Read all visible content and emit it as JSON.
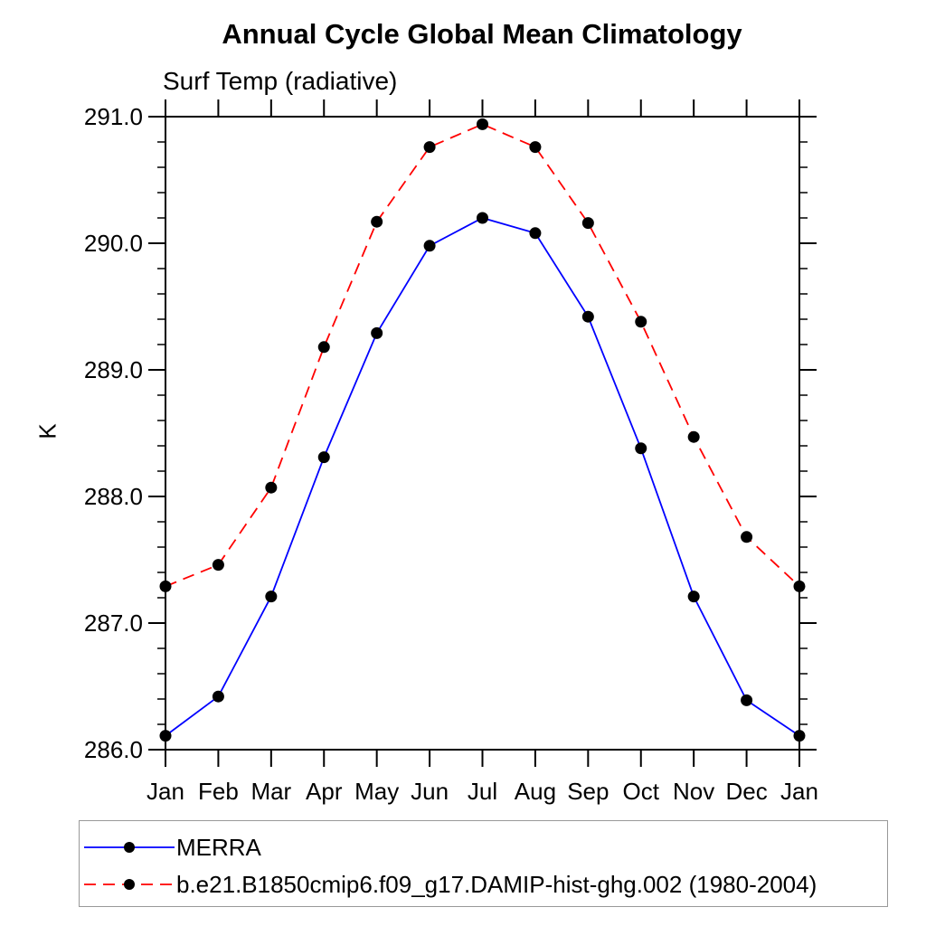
{
  "title": "Annual Cycle Global Mean Climatology",
  "subtitle": "Surf Temp (radiative)",
  "ylabel": "K",
  "colors": {
    "merra_line": "#0000ff",
    "model_line": "#ff0000",
    "marker": "#000000",
    "axis": "#000000",
    "legend_border": "#999999"
  },
  "legend": {
    "items": [
      {
        "label": "MERRA",
        "color": "#0000ff",
        "style": "solid"
      },
      {
        "label": "b.e21.B1850cmip6.f09_g17.DAMIP-hist-ghg.002 (1980-2004)",
        "color": "#ff0000",
        "style": "dashed"
      }
    ]
  },
  "chart_data": {
    "type": "line",
    "title": "Annual Cycle Global Mean Climatology",
    "subtitle": "Surf Temp (radiative)",
    "xlabel": "",
    "ylabel": "K",
    "categories": [
      "Jan",
      "Feb",
      "Mar",
      "Apr",
      "May",
      "Jun",
      "Jul",
      "Aug",
      "Sep",
      "Oct",
      "Nov",
      "Dec",
      "Jan"
    ],
    "series": [
      {
        "name": "MERRA",
        "color": "#0000ff",
        "dash": "solid",
        "marker_color": "#000000",
        "values": [
          286.11,
          286.42,
          287.21,
          288.31,
          289.29,
          289.98,
          290.2,
          290.08,
          289.42,
          288.38,
          287.21,
          286.39,
          286.11
        ]
      },
      {
        "name": "b.e21.B1850cmip6.f09_g17.DAMIP-hist-ghg.002 (1980-2004)",
        "color": "#ff0000",
        "dash": "dashed",
        "marker_color": "#000000",
        "values": [
          287.29,
          287.46,
          288.07,
          289.18,
          290.17,
          290.76,
          290.94,
          290.76,
          290.16,
          289.38,
          288.47,
          287.68,
          287.29
        ]
      }
    ],
    "ylim": [
      286.0,
      291.0
    ],
    "ytick_labels": [
      "286.0",
      "287.0",
      "288.0",
      "289.0",
      "290.0",
      "291.0"
    ],
    "ytick_values": [
      286.0,
      287.0,
      288.0,
      289.0,
      290.0,
      291.0
    ],
    "ytick_minor_step": 0.2,
    "grid": false,
    "legend_position": "bottom"
  }
}
